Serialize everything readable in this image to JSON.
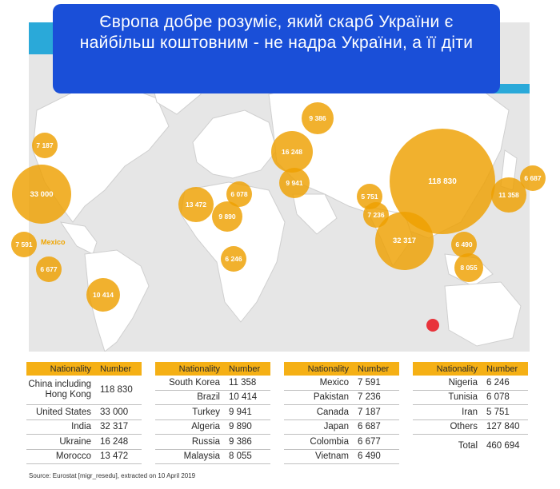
{
  "title": "Європа добре розуміє, який скарб України є найбільш коштовним - не надра України, а її діти",
  "bubbles": [
    {
      "label": "7 187",
      "country": "Canada"
    },
    {
      "label": "33 000",
      "country": "United States"
    },
    {
      "label": "7 591",
      "country": "Mexico"
    },
    {
      "label": "6 677",
      "country": "Colombia"
    },
    {
      "label": "10 414",
      "country": "Brazil"
    },
    {
      "label": "13 472",
      "country": "Morocco"
    },
    {
      "label": "9 890",
      "country": "Algeria"
    },
    {
      "label": "6 078",
      "country": "Tunisia"
    },
    {
      "label": "6 246",
      "country": "Nigeria"
    },
    {
      "label": "16 248",
      "country": "Ukraine"
    },
    {
      "label": "9 386",
      "country": "Russia"
    },
    {
      "label": "9 941",
      "country": "Turkey"
    },
    {
      "label": "5 751",
      "country": "Iran"
    },
    {
      "label": "7 236",
      "country": "Pakistan"
    },
    {
      "label": "32 317",
      "country": "India"
    },
    {
      "label": "118 830",
      "country": "China"
    },
    {
      "label": "11 358",
      "country": "South Korea"
    },
    {
      "label": "6 687",
      "country": "Japan"
    },
    {
      "label": "6 490",
      "country": "Vietnam"
    },
    {
      "label": "8 055",
      "country": "Malaysia"
    }
  ],
  "mexico_label": "Mexico",
  "table_headers": {
    "nationality": "Nationality",
    "number": "Number"
  },
  "tables": [
    {
      "rows": [
        {
          "nationality": "China including Hong Kong",
          "number": "118 830"
        },
        {
          "nationality": "United States",
          "number": "33 000"
        },
        {
          "nationality": "India",
          "number": "32 317"
        },
        {
          "nationality": "Ukraine",
          "number": "16 248"
        },
        {
          "nationality": "Morocco",
          "number": "13 472"
        }
      ]
    },
    {
      "rows": [
        {
          "nationality": "South Korea",
          "number": "11 358"
        },
        {
          "nationality": "Brazil",
          "number": "10 414"
        },
        {
          "nationality": "Turkey",
          "number": "9 941"
        },
        {
          "nationality": "Algeria",
          "number": "9 890"
        },
        {
          "nationality": "Russia",
          "number": "9 386"
        },
        {
          "nationality": "Malaysia",
          "number": "8 055"
        }
      ]
    },
    {
      "rows": [
        {
          "nationality": "Mexico",
          "number": "7 591"
        },
        {
          "nationality": "Pakistan",
          "number": "7 236"
        },
        {
          "nationality": "Canada",
          "number": "7 187"
        },
        {
          "nationality": "Japan",
          "number": "6 687"
        },
        {
          "nationality": "Colombia",
          "number": "6 677"
        },
        {
          "nationality": "Vietnam",
          "number": "6 490"
        }
      ]
    },
    {
      "rows": [
        {
          "nationality": "Nigeria",
          "number": "6 246"
        },
        {
          "nationality": "Tunisia",
          "number": "6 078"
        },
        {
          "nationality": "Iran",
          "number": "5 751"
        },
        {
          "nationality": "Others",
          "number": "127 840"
        }
      ]
    }
  ],
  "total": {
    "label": "Total",
    "value": "460 694"
  },
  "source": "Source: Eurostat [migr_resedu], extracted on 10 April 2019",
  "colors": {
    "bubble": "#eea000",
    "header": "#f5b015",
    "banner": "#1a4fd8",
    "stripe": "#2aa9d9",
    "marker": "#e8333b"
  }
}
